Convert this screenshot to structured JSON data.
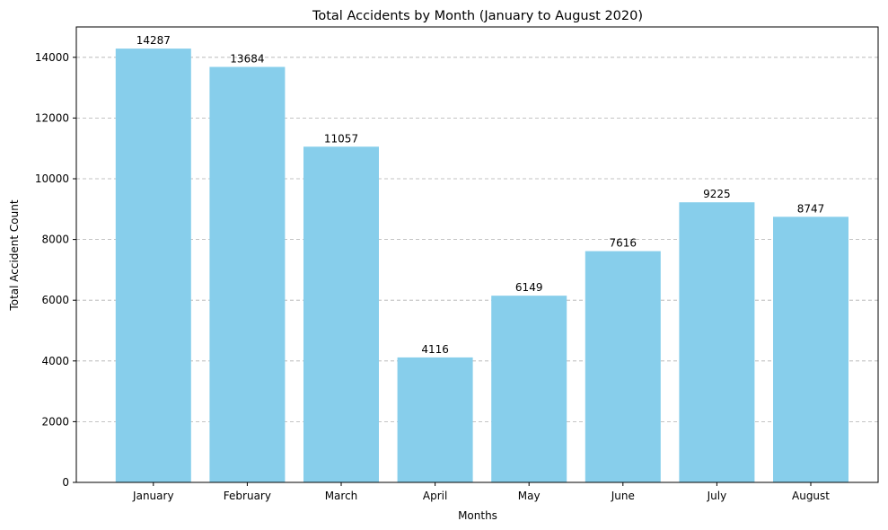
{
  "chart_data": {
    "type": "bar",
    "title": "Total Accidents by Month (January to August 2020)",
    "xlabel": "Months",
    "ylabel": "Total Accident Count",
    "categories": [
      "January",
      "February",
      "March",
      "April",
      "May",
      "June",
      "July",
      "August"
    ],
    "values": [
      14287,
      13684,
      11057,
      4116,
      6149,
      7616,
      9225,
      8747
    ],
    "data_labels": [
      "14287",
      "13684",
      "11057",
      "4116",
      "6149",
      "7616",
      "9225",
      "8747"
    ],
    "yticks": [
      0,
      2000,
      4000,
      6000,
      8000,
      10000,
      12000,
      14000
    ],
    "ytick_labels": [
      "0",
      "2000",
      "4000",
      "6000",
      "8000",
      "10000",
      "12000",
      "14000"
    ],
    "ylim": [
      0,
      15000
    ],
    "grid": "y-dashed",
    "bar_color": "#87ceeb"
  }
}
